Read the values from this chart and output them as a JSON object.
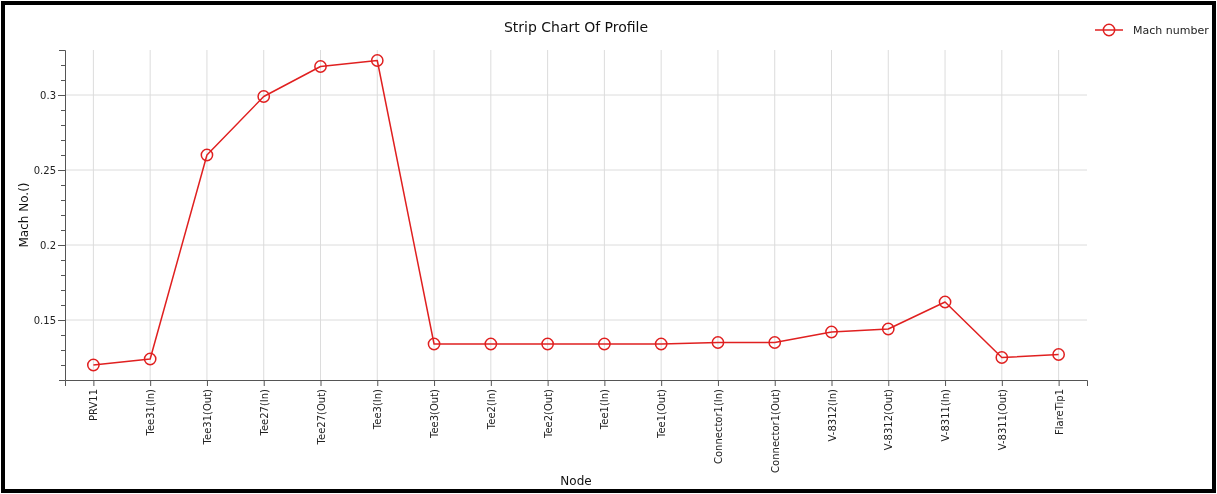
{
  "chart_data": {
    "type": "line",
    "title": "Strip Chart Of Profile",
    "xlabel": "Node",
    "ylabel": "Mach No.()",
    "categories": [
      "PRV11",
      "Tee31(In)",
      "Tee31(Out)",
      "Tee27(In)",
      "Tee27(Out)",
      "Tee3(In)",
      "Tee3(Out)",
      "Tee2(In)",
      "Tee2(Out)",
      "Tee1(In)",
      "Tee1(Out)",
      "Connector1(In)",
      "Connector1(Out)",
      "V-8312(In)",
      "V-8312(Out)",
      "V-8311(In)",
      "V-8311(Out)",
      "FlareTip1"
    ],
    "series": [
      {
        "name": "Mach number",
        "color": "#e02020",
        "values": [
          0.12,
          0.124,
          0.26,
          0.299,
          0.319,
          0.323,
          0.134,
          0.134,
          0.134,
          0.134,
          0.134,
          0.135,
          0.135,
          0.142,
          0.144,
          0.162,
          0.125,
          0.127
        ]
      }
    ],
    "ylim": [
      0.11,
      0.33
    ],
    "yticks": [
      {
        "value": 0.11,
        "label": null
      },
      {
        "value": 0.12,
        "label": null
      },
      {
        "value": 0.13,
        "label": null
      },
      {
        "value": 0.14,
        "label": null
      },
      0.15,
      {
        "value": 0.16,
        "label": null
      },
      {
        "value": 0.17,
        "label": null
      },
      {
        "value": 0.18,
        "label": null
      },
      {
        "value": 0.19,
        "label": null
      },
      0.2,
      {
        "value": 0.21,
        "label": null
      },
      {
        "value": 0.22,
        "label": null
      },
      {
        "value": 0.23,
        "label": null
      },
      {
        "value": 0.24,
        "label": null
      },
      0.25,
      {
        "value": 0.26,
        "label": null
      },
      {
        "value": 0.27,
        "label": null
      },
      {
        "value": 0.28,
        "label": null
      },
      {
        "value": 0.29,
        "label": null
      },
      0.3,
      {
        "value": 0.31,
        "label": null
      },
      {
        "value": 0.32,
        "label": null
      },
      {
        "value": 0.33,
        "label": null
      }
    ],
    "grid": true,
    "legend": "top right",
    "marker": "circle",
    "line_style": "solid"
  }
}
